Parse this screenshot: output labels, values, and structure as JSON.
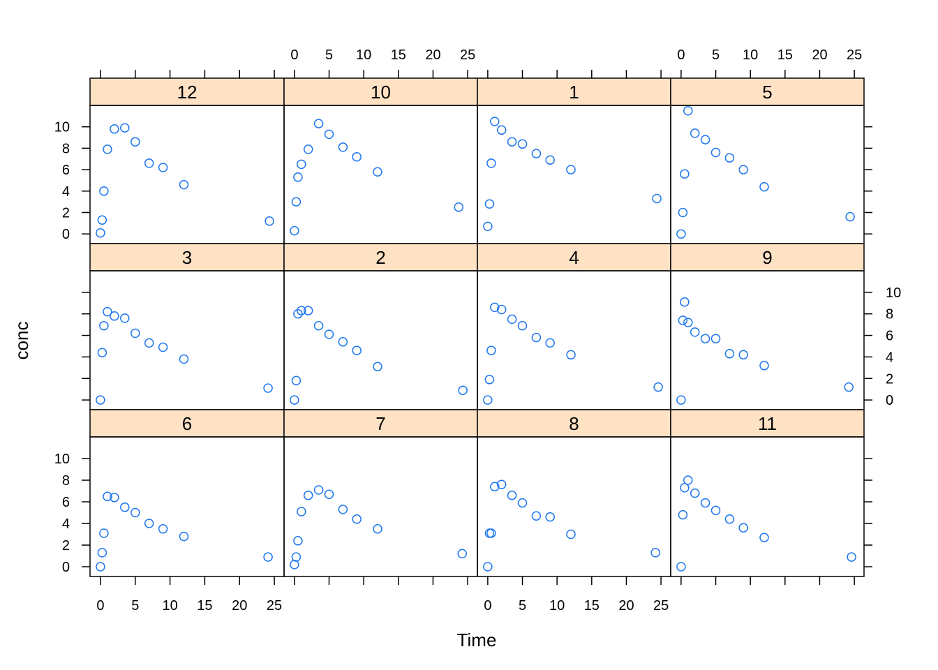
{
  "colors": {
    "strip": "#FFE1C4",
    "point": "#1F77F0",
    "frame": "#000000"
  },
  "chart_data": {
    "type": "scatter",
    "layout": "lattice 4 columns x 3 rows",
    "xlabel": "Time",
    "ylabel": "conc",
    "xlim": [
      -1.5,
      26.4
    ],
    "ylim": [
      -0.9,
      12.0
    ],
    "x_ticks": [
      0,
      5,
      10,
      15,
      20,
      25
    ],
    "y_ticks": [
      0,
      2,
      4,
      6,
      8,
      10
    ],
    "panels": [
      {
        "label": "12",
        "x": [
          0,
          0.25,
          0.5,
          1,
          2,
          3.5,
          5,
          7,
          9,
          12,
          24.3
        ],
        "y": [
          0.1,
          1.3,
          4.0,
          7.9,
          9.8,
          9.9,
          8.6,
          6.6,
          6.2,
          4.6,
          1.2
        ]
      },
      {
        "label": "10",
        "x": [
          0,
          0.25,
          0.5,
          1,
          2,
          3.5,
          5,
          7,
          9,
          12,
          23.7
        ],
        "y": [
          0.3,
          3.0,
          5.3,
          6.5,
          7.9,
          10.3,
          9.3,
          8.1,
          7.2,
          5.8,
          2.5
        ]
      },
      {
        "label": "1",
        "x": [
          0,
          0.25,
          0.5,
          1,
          2,
          3.5,
          5,
          7,
          9,
          12,
          24.4
        ],
        "y": [
          0.7,
          2.8,
          6.6,
          10.5,
          9.7,
          8.6,
          8.4,
          7.5,
          6.9,
          6.0,
          3.3
        ]
      },
      {
        "label": "5",
        "x": [
          0,
          0.25,
          0.5,
          1,
          2,
          3.5,
          5,
          7,
          9,
          12,
          24.4
        ],
        "y": [
          0.0,
          2.0,
          5.6,
          11.5,
          9.4,
          8.8,
          7.6,
          7.1,
          6.0,
          4.4,
          1.6
        ]
      },
      {
        "label": "3",
        "x": [
          0,
          0.25,
          0.5,
          1,
          2,
          3.5,
          5,
          7,
          9,
          12,
          24.1
        ],
        "y": [
          0.0,
          4.4,
          6.9,
          8.2,
          7.8,
          7.6,
          6.2,
          5.3,
          4.9,
          3.8,
          1.1
        ]
      },
      {
        "label": "2",
        "x": [
          0,
          0.25,
          0.5,
          1,
          2,
          3.5,
          5,
          7,
          9,
          12,
          24.3
        ],
        "y": [
          0.0,
          1.8,
          8.0,
          8.3,
          8.3,
          6.9,
          6.1,
          5.4,
          4.6,
          3.1,
          0.9
        ]
      },
      {
        "label": "4",
        "x": [
          0,
          0.25,
          0.5,
          1,
          2,
          3.5,
          5,
          7,
          9,
          12,
          24.6
        ],
        "y": [
          0.0,
          1.9,
          4.6,
          8.6,
          8.4,
          7.5,
          6.9,
          5.8,
          5.3,
          4.2,
          1.2
        ]
      },
      {
        "label": "9",
        "x": [
          0,
          0.25,
          0.5,
          1,
          2,
          3.5,
          5,
          7,
          9,
          12,
          24.2
        ],
        "y": [
          0.0,
          7.4,
          9.1,
          7.2,
          6.3,
          5.7,
          5.7,
          4.3,
          4.2,
          3.2,
          1.2
        ]
      },
      {
        "label": "6",
        "x": [
          0,
          0.25,
          0.5,
          1,
          2,
          3.5,
          5,
          7,
          9,
          12,
          24.1
        ],
        "y": [
          0.0,
          1.3,
          3.1,
          6.5,
          6.4,
          5.5,
          5.0,
          4.0,
          3.5,
          2.8,
          0.9
        ]
      },
      {
        "label": "7",
        "x": [
          0,
          0.25,
          0.5,
          1,
          2,
          3.5,
          5,
          7,
          9,
          12,
          24.2
        ],
        "y": [
          0.2,
          0.9,
          2.4,
          5.1,
          6.6,
          7.1,
          6.7,
          5.3,
          4.4,
          3.5,
          1.2
        ]
      },
      {
        "label": "8",
        "x": [
          0,
          0.25,
          0.5,
          1,
          2,
          3.5,
          5,
          7,
          9,
          12,
          24.2
        ],
        "y": [
          0.0,
          3.1,
          3.1,
          7.4,
          7.6,
          6.6,
          5.9,
          4.7,
          4.6,
          3.0,
          1.3
        ]
      },
      {
        "label": "11",
        "x": [
          0,
          0.25,
          0.5,
          1,
          2,
          3.5,
          5,
          7,
          9,
          12,
          24.6
        ],
        "y": [
          0.0,
          4.8,
          7.3,
          8.0,
          6.8,
          5.9,
          5.2,
          4.4,
          3.6,
          2.7,
          0.9
        ]
      }
    ]
  }
}
